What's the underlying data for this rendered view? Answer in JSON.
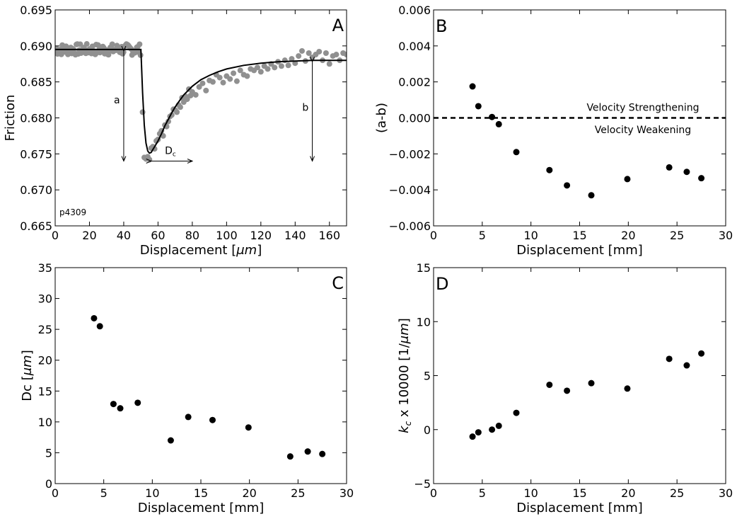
{
  "colors": {
    "raw_data": "#909090",
    "fit_line": "#000000",
    "points": "#000000",
    "axes": "#000000"
  },
  "chart_data": [
    {
      "id": "A",
      "type": "scatter",
      "panel_label": "A",
      "xlabel_prefix": "Displacement [",
      "xlabel_unit": "μm",
      "xlabel_suffix": "]",
      "ylabel": "Friction",
      "xlim": [
        0,
        170
      ],
      "ylim": [
        0.665,
        0.695
      ],
      "x_ticks": [
        0,
        20,
        40,
        60,
        80,
        100,
        120,
        140,
        160
      ],
      "y_ticks": [
        0.665,
        0.67,
        0.675,
        0.68,
        0.685,
        0.69,
        0.695
      ],
      "y_tick_labels": [
        "0.665",
        "0.670",
        "0.675",
        "0.680",
        "0.685",
        "0.690",
        "0.695"
      ],
      "experiment_label": "p4309",
      "series": [
        {
          "kind": "raw_points",
          "steady_state": {
            "x_range": [
              0,
              50
            ],
            "mean": 0.6895,
            "scatter": 0.0008
          },
          "x": [
            51,
            52,
            53,
            54,
            55,
            56,
            57,
            58,
            59,
            60,
            61,
            62,
            63,
            64,
            65,
            66,
            67,
            68,
            69,
            70,
            71,
            72,
            73,
            74,
            75,
            76,
            77,
            78,
            79,
            80,
            82,
            84,
            86,
            88,
            90,
            92,
            94,
            96,
            98,
            100,
            102,
            104,
            106,
            108,
            110,
            112,
            114,
            116,
            118,
            120,
            122,
            124,
            126,
            128,
            130,
            132,
            134,
            136,
            138,
            140,
            142,
            144,
            146,
            148,
            150,
            152,
            154,
            156,
            158,
            160,
            162,
            164,
            166,
            168,
            170
          ],
          "y": [
            0.6808,
            0.6745,
            0.6743,
            0.6746,
            0.6742,
            0.6758,
            0.676,
            0.6757,
            0.6768,
            0.677,
            0.6778,
            0.6782,
            0.6775,
            0.679,
            0.6788,
            0.6795,
            0.6802,
            0.6804,
            0.6812,
            0.6811,
            0.6808,
            0.6818,
            0.6815,
            0.6828,
            0.6822,
            0.683,
            0.6826,
            0.684,
            0.6831,
            0.6836,
            0.6832,
            0.6843,
            0.6848,
            0.6838,
            0.6852,
            0.685,
            0.686,
            0.6856,
            0.6849,
            0.6858,
            0.6854,
            0.6862,
            0.6851,
            0.6866,
            0.686,
            0.6858,
            0.6868,
            0.6866,
            0.687,
            0.6864,
            0.6872,
            0.6868,
            0.6875,
            0.687,
            0.6878,
            0.6872,
            0.688,
            0.6873,
            0.6882,
            0.6876,
            0.6886,
            0.6893,
            0.6879,
            0.689,
            0.6884,
            0.6888,
            0.6892,
            0.688,
            0.689,
            0.6875,
            0.6886,
            0.6888,
            0.688,
            0.689,
            0.6888
          ]
        },
        {
          "kind": "fit_line",
          "x": [
            0,
            50,
            51,
            52,
            53,
            54,
            55,
            56,
            57,
            58,
            60,
            62,
            64,
            66,
            68,
            70,
            72,
            75,
            80,
            85,
            90,
            95,
            100,
            110,
            120,
            130,
            140,
            150,
            160,
            170
          ],
          "y": [
            0.6895,
            0.6895,
            0.6835,
            0.679,
            0.6765,
            0.6754,
            0.6751,
            0.6752,
            0.6756,
            0.676,
            0.6768,
            0.6778,
            0.6789,
            0.6798,
            0.6807,
            0.6815,
            0.6822,
            0.6832,
            0.6844,
            0.6853,
            0.6859,
            0.6864,
            0.6868,
            0.6873,
            0.6876,
            0.6878,
            0.6879,
            0.688,
            0.688,
            0.688
          ]
        }
      ],
      "annotations": [
        {
          "name": "a",
          "text": "a",
          "x": 40,
          "y_from": 0.6893,
          "y_to": 0.674,
          "label_x": 36,
          "label_y": 0.682
        },
        {
          "name": "b",
          "text": "b",
          "x": 150,
          "y_from": 0.6878,
          "y_to": 0.674,
          "label_x": 146,
          "label_y": 0.681
        },
        {
          "name": "dc",
          "text_main": "D",
          "text_sub": "c",
          "x_from": 56,
          "x_to": 80,
          "y": 0.674,
          "label_x": 64,
          "label_y": 0.675
        }
      ]
    },
    {
      "id": "B",
      "type": "scatter",
      "panel_label": "B",
      "xlabel": "Displacement [mm]",
      "ylabel": "(a-b)",
      "xlim": [
        0,
        30
      ],
      "ylim": [
        -0.006,
        0.006
      ],
      "x_ticks": [
        0,
        5,
        10,
        15,
        20,
        25,
        30
      ],
      "y_ticks": [
        -0.006,
        -0.004,
        -0.002,
        0.0,
        0.002,
        0.004,
        0.006
      ],
      "y_tick_labels": [
        "−0.006",
        "−0.004",
        "−0.002",
        "0.000",
        "0.002",
        "0.004",
        "0.006"
      ],
      "x": [
        4.0,
        4.6,
        6.0,
        6.7,
        8.5,
        11.9,
        13.7,
        16.2,
        19.9,
        24.2,
        26.0,
        27.5
      ],
      "y": [
        0.00175,
        0.00065,
        5e-05,
        -0.00035,
        -0.0019,
        -0.0029,
        -0.00375,
        -0.0043,
        -0.0034,
        -0.00275,
        -0.003,
        -0.00335
      ],
      "reference_line": {
        "y": 0,
        "style": "dashed"
      },
      "annotations": [
        {
          "name": "velocity-strengthening",
          "text": "Velocity Strengthening",
          "x": 21.5,
          "y": 0.0006
        },
        {
          "name": "velocity-weakening",
          "text": "Velocity Weakening",
          "x": 21.5,
          "y": -0.00065
        }
      ]
    },
    {
      "id": "C",
      "type": "scatter",
      "panel_label": "C",
      "xlabel": "Displacement [mm]",
      "ylabel_prefix": "Dc [",
      "ylabel_unit": "μm",
      "ylabel_suffix": "]",
      "xlim": [
        0,
        30
      ],
      "ylim": [
        0,
        35
      ],
      "x_ticks": [
        0,
        5,
        10,
        15,
        20,
        25,
        30
      ],
      "y_ticks": [
        0,
        5,
        10,
        15,
        20,
        25,
        30,
        35
      ],
      "y_tick_labels": [
        "0",
        "5",
        "10",
        "15",
        "20",
        "25",
        "30",
        "35"
      ],
      "x": [
        4.0,
        4.6,
        6.0,
        6.7,
        8.5,
        11.9,
        13.7,
        16.2,
        19.9,
        24.2,
        26.0,
        27.5
      ],
      "y": [
        26.8,
        25.5,
        12.9,
        12.2,
        13.1,
        7.0,
        10.8,
        10.3,
        9.1,
        4.4,
        5.2,
        4.8
      ]
    },
    {
      "id": "D",
      "type": "scatter",
      "panel_label": "D",
      "xlabel": "Displacement [mm]",
      "ylabel_k": "k",
      "ylabel_k_sub": "c",
      "ylabel_mid": " x 10000 [1/",
      "ylabel_unit": "μm",
      "ylabel_suffix": "]",
      "xlim": [
        0,
        30
      ],
      "ylim": [
        -5,
        15
      ],
      "x_ticks": [
        0,
        5,
        10,
        15,
        20,
        25,
        30
      ],
      "y_ticks": [
        -5,
        0,
        5,
        10,
        15
      ],
      "y_tick_labels": [
        "−5",
        "0",
        "5",
        "10",
        "15"
      ],
      "x": [
        4.0,
        4.6,
        6.0,
        6.7,
        8.5,
        11.9,
        13.7,
        16.2,
        19.9,
        24.2,
        26.0,
        27.5
      ],
      "y": [
        -0.65,
        -0.25,
        0.0,
        0.35,
        1.55,
        4.15,
        3.6,
        4.3,
        3.8,
        6.55,
        5.95,
        7.05
      ]
    }
  ]
}
